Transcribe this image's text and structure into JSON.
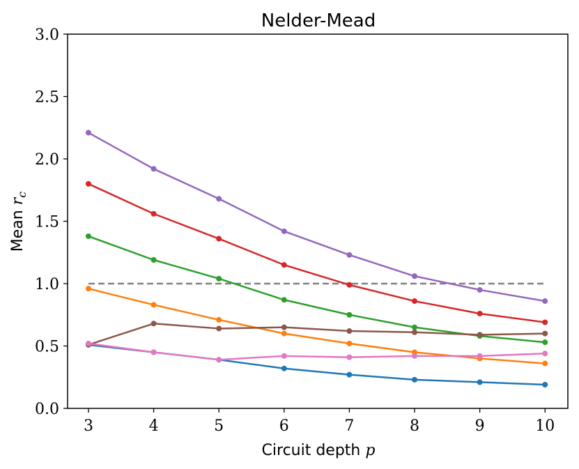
{
  "chart_data": {
    "type": "line",
    "title": "Nelder-Mead",
    "xlabel": "Circuit depth",
    "xlabel_symbol": "p",
    "ylabel": "Mean",
    "ylabel_symbol": "r",
    "ylabel_subscript": "c",
    "x": [
      3,
      4,
      5,
      6,
      7,
      8,
      9,
      10
    ],
    "xticks": [
      "3",
      "4",
      "5",
      "6",
      "7",
      "8",
      "9",
      "10"
    ],
    "yticks": [
      "0.0",
      "0.5",
      "1.0",
      "1.5",
      "2.0",
      "2.5",
      "3.0"
    ],
    "xlim": [
      2.68,
      10.35
    ],
    "ylim": [
      0.0,
      3.0
    ],
    "grid": false,
    "reference_line": {
      "y": 1.0,
      "x_start": 3,
      "x_end": 10,
      "color": "#808080",
      "style": "dashed"
    },
    "series": [
      {
        "name": "series-blue",
        "color": "#1f77b4",
        "values": [
          0.51,
          0.45,
          0.39,
          0.32,
          0.27,
          0.23,
          0.21,
          0.19
        ]
      },
      {
        "name": "series-orange",
        "color": "#ff7f0e",
        "values": [
          0.96,
          0.83,
          0.71,
          0.6,
          0.52,
          0.45,
          0.4,
          0.36
        ]
      },
      {
        "name": "series-green",
        "color": "#2ca02c",
        "values": [
          1.38,
          1.19,
          1.04,
          0.87,
          0.75,
          0.65,
          0.58,
          0.53
        ]
      },
      {
        "name": "series-red",
        "color": "#d62728",
        "values": [
          1.8,
          1.56,
          1.36,
          1.15,
          0.99,
          0.86,
          0.76,
          0.69
        ]
      },
      {
        "name": "series-purple",
        "color": "#9467bd",
        "values": [
          2.21,
          1.92,
          1.68,
          1.42,
          1.23,
          1.06,
          0.95,
          0.86
        ]
      },
      {
        "name": "series-brown",
        "color": "#8c564b",
        "values": [
          0.51,
          0.68,
          0.64,
          0.65,
          0.62,
          0.61,
          0.59,
          0.6
        ]
      },
      {
        "name": "series-pink",
        "color": "#e377c2",
        "values": [
          0.52,
          0.45,
          0.39,
          0.42,
          0.41,
          0.42,
          0.42,
          0.44
        ]
      }
    ]
  }
}
